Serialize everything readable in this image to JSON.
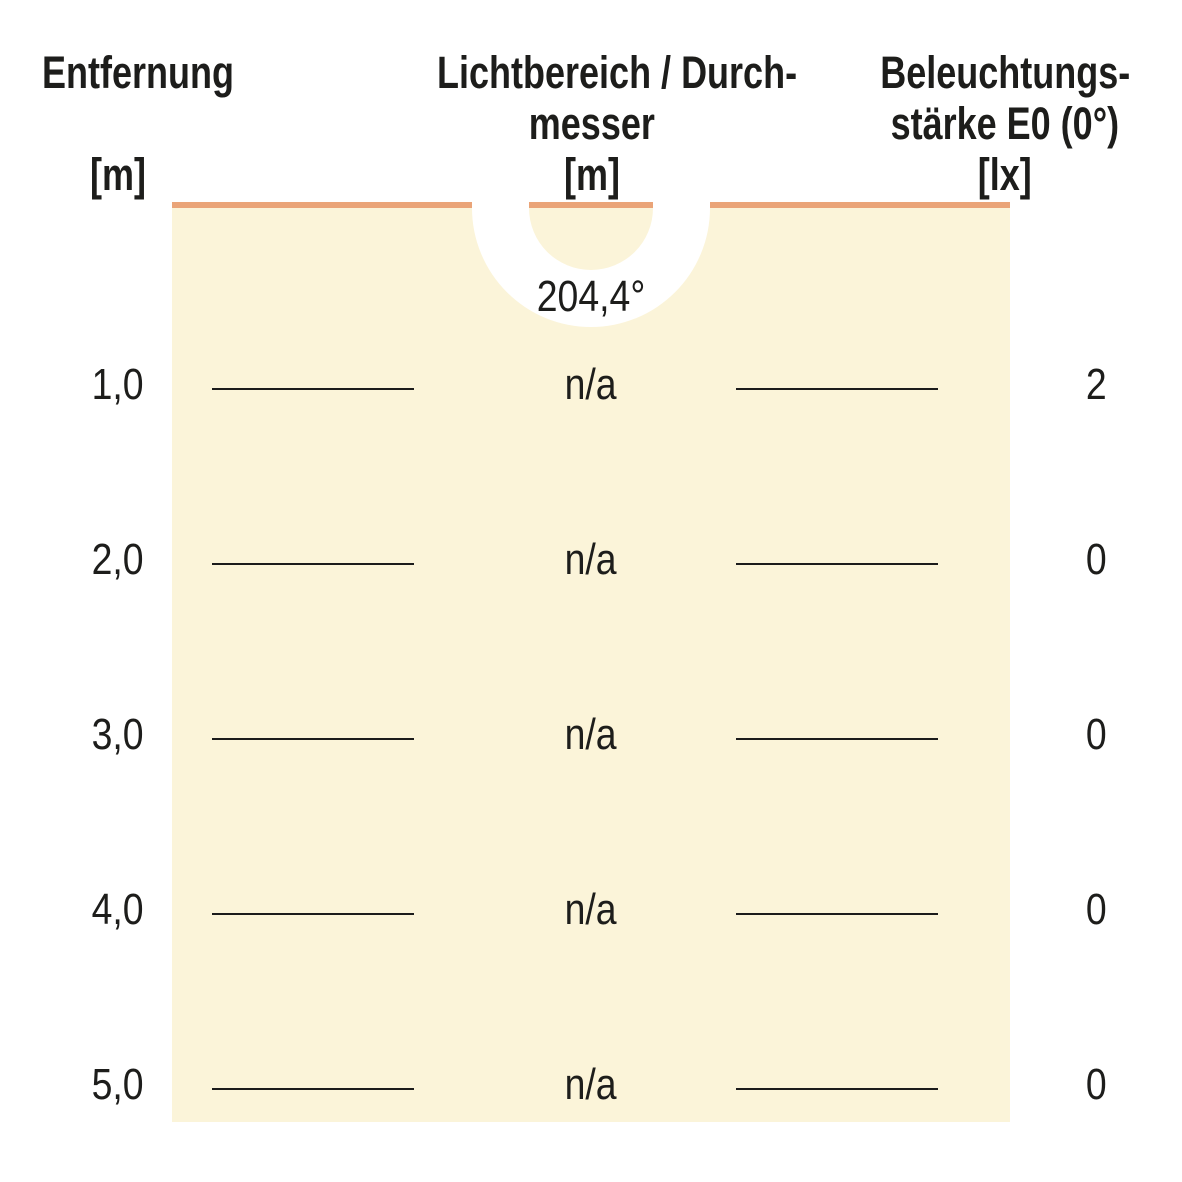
{
  "diagram": {
    "columns": {
      "distance": {
        "title": "Entfernung",
        "unit": "[m]"
      },
      "diameter": {
        "title": "Lichtbereich / Durch-",
        "title2": "messer",
        "unit": "[m]"
      },
      "illuminance": {
        "title": "Beleuchtungs-",
        "title2": "stärke E0 (0°)",
        "unit": "[lx]"
      }
    },
    "beam_angle": "204,4°",
    "rows": [
      {
        "distance": "1,0",
        "diameter": "n/a",
        "illuminance": "2"
      },
      {
        "distance": "2,0",
        "diameter": "n/a",
        "illuminance": "0"
      },
      {
        "distance": "3,0",
        "diameter": "n/a",
        "illuminance": "0"
      },
      {
        "distance": "4,0",
        "diameter": "n/a",
        "illuminance": "0"
      },
      {
        "distance": "5,0",
        "diameter": "n/a",
        "illuminance": "0"
      }
    ],
    "colors": {
      "cone_fill": "#FBF4D9",
      "cone_edge": "#EAA478",
      "ink": "#1D1D1B",
      "rule": "#1B1B1B"
    }
  }
}
